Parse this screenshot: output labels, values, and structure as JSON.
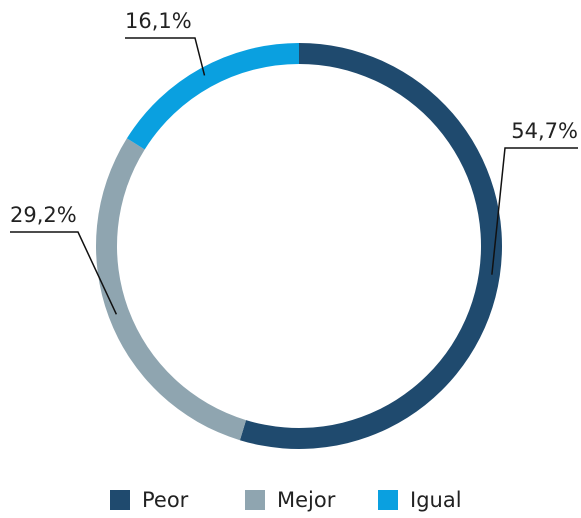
{
  "chart_data": {
    "type": "donut",
    "categories": [
      "Peor",
      "Mejor",
      "Igual"
    ],
    "values": [
      54.7,
      29.2,
      16.1
    ],
    "value_labels": [
      "54,7%",
      "29,2%",
      "16,1%"
    ],
    "colors": [
      "#1f4a6e",
      "#8fa5b0",
      "#0aa0e0"
    ],
    "legend": "bottom"
  }
}
